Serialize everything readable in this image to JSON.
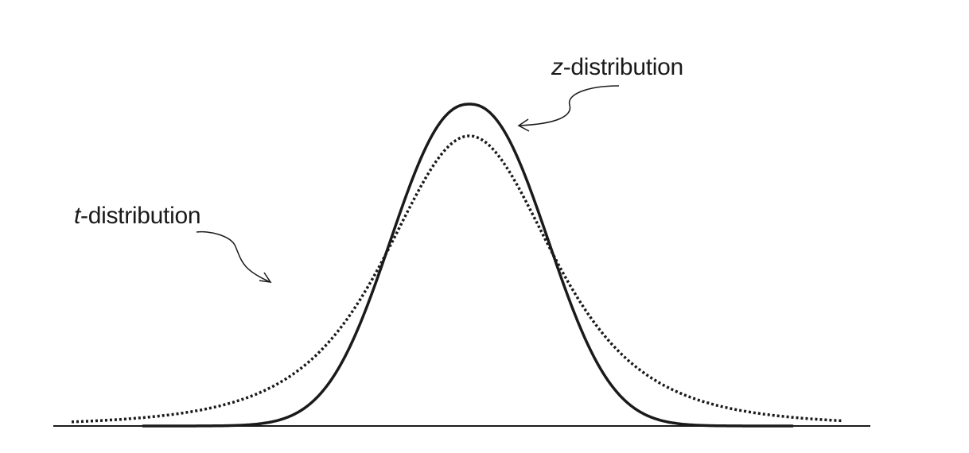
{
  "labels": {
    "z": {
      "symbol": "z",
      "suffix": "-distribution"
    },
    "t": {
      "symbol": "t",
      "suffix": "-distribution"
    }
  },
  "colors": {
    "ink": "#1a1a1a",
    "background": "#ffffff"
  }
}
